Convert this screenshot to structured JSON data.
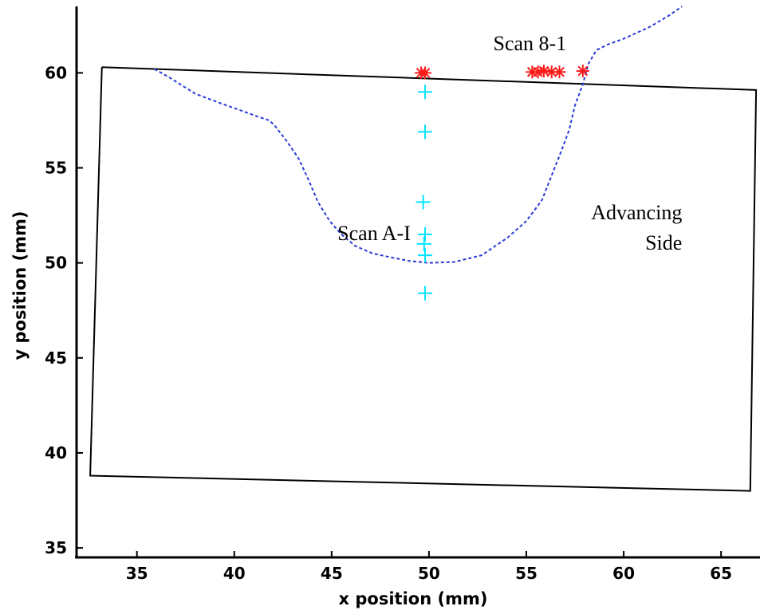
{
  "chart_data": {
    "type": "scatter",
    "xlabel": "x position (mm)",
    "ylabel": "y position (mm)",
    "xlim": [
      31.9,
      67.0
    ],
    "ylim": [
      34.5,
      63.5
    ],
    "xticks": [
      35,
      40,
      45,
      50,
      55,
      60,
      65
    ],
    "yticks": [
      35,
      40,
      45,
      50,
      55,
      60
    ],
    "xtick_labels": [
      "35",
      "40",
      "45",
      "50",
      "55",
      "60",
      "65"
    ],
    "ytick_labels": [
      "35",
      "40",
      "45",
      "50",
      "55",
      "60"
    ],
    "grid": false,
    "colors": {
      "outline": "#000000",
      "profile": "#2a3bd6",
      "scan_a": "#00e5ff",
      "scan_b": "#ff1a1a"
    },
    "outline": {
      "x": [
        33.2,
        66.8,
        66.5,
        32.6,
        33.2
      ],
      "y": [
        60.3,
        59.1,
        38.0,
        38.8,
        60.3
      ]
    },
    "profile": {
      "x": [
        35.9,
        36.6,
        38.0,
        39.3,
        40.4,
        41.2,
        41.8,
        42.1,
        42.7,
        43.3,
        43.8,
        44.3,
        44.9,
        45.5,
        46.2,
        47.1,
        48.0,
        49.0,
        50.0,
        51.3,
        52.7,
        54.0,
        55.0,
        55.8,
        56.3,
        56.8,
        57.2,
        57.5,
        57.9,
        58.2,
        58.6,
        59.2,
        60.0,
        61.3,
        62.3,
        63.0
      ],
      "y": [
        60.2,
        59.8,
        58.9,
        58.4,
        58.0,
        57.7,
        57.5,
        57.2,
        56.4,
        55.5,
        54.4,
        53.2,
        52.2,
        51.5,
        50.9,
        50.5,
        50.3,
        50.1,
        50.0,
        50.05,
        50.4,
        51.3,
        52.2,
        53.3,
        54.6,
        55.9,
        57.0,
        58.3,
        59.4,
        60.5,
        61.2,
        61.5,
        61.8,
        62.4,
        63.0,
        63.5
      ]
    },
    "series": [
      {
        "marker": "+",
        "x": [
          49.8,
          49.8,
          49.7,
          49.8,
          49.75,
          49.8,
          49.8
        ],
        "y": [
          59.0,
          56.9,
          53.2,
          51.5,
          51.0,
          50.4,
          48.4
        ]
      },
      {
        "marker": "*",
        "x": [
          49.8,
          49.6,
          55.3,
          55.6,
          55.9,
          56.3,
          56.7,
          57.9
        ],
        "y": [
          60.0,
          60.0,
          60.05,
          60.05,
          60.1,
          60.05,
          60.05,
          60.1
        ]
      }
    ],
    "annotations": [
      {
        "text": "Scan 8-1",
        "x": 53.3,
        "y": 61.2,
        "align": "start"
      },
      {
        "text": "Scan A-I",
        "x": 45.3,
        "y": 51.2,
        "align": "start"
      },
      {
        "text": "Advancing",
        "x": 63.0,
        "y": 52.3,
        "align": "end"
      },
      {
        "text": "Side",
        "x": 63.0,
        "y": 50.7,
        "align": "end"
      }
    ]
  }
}
